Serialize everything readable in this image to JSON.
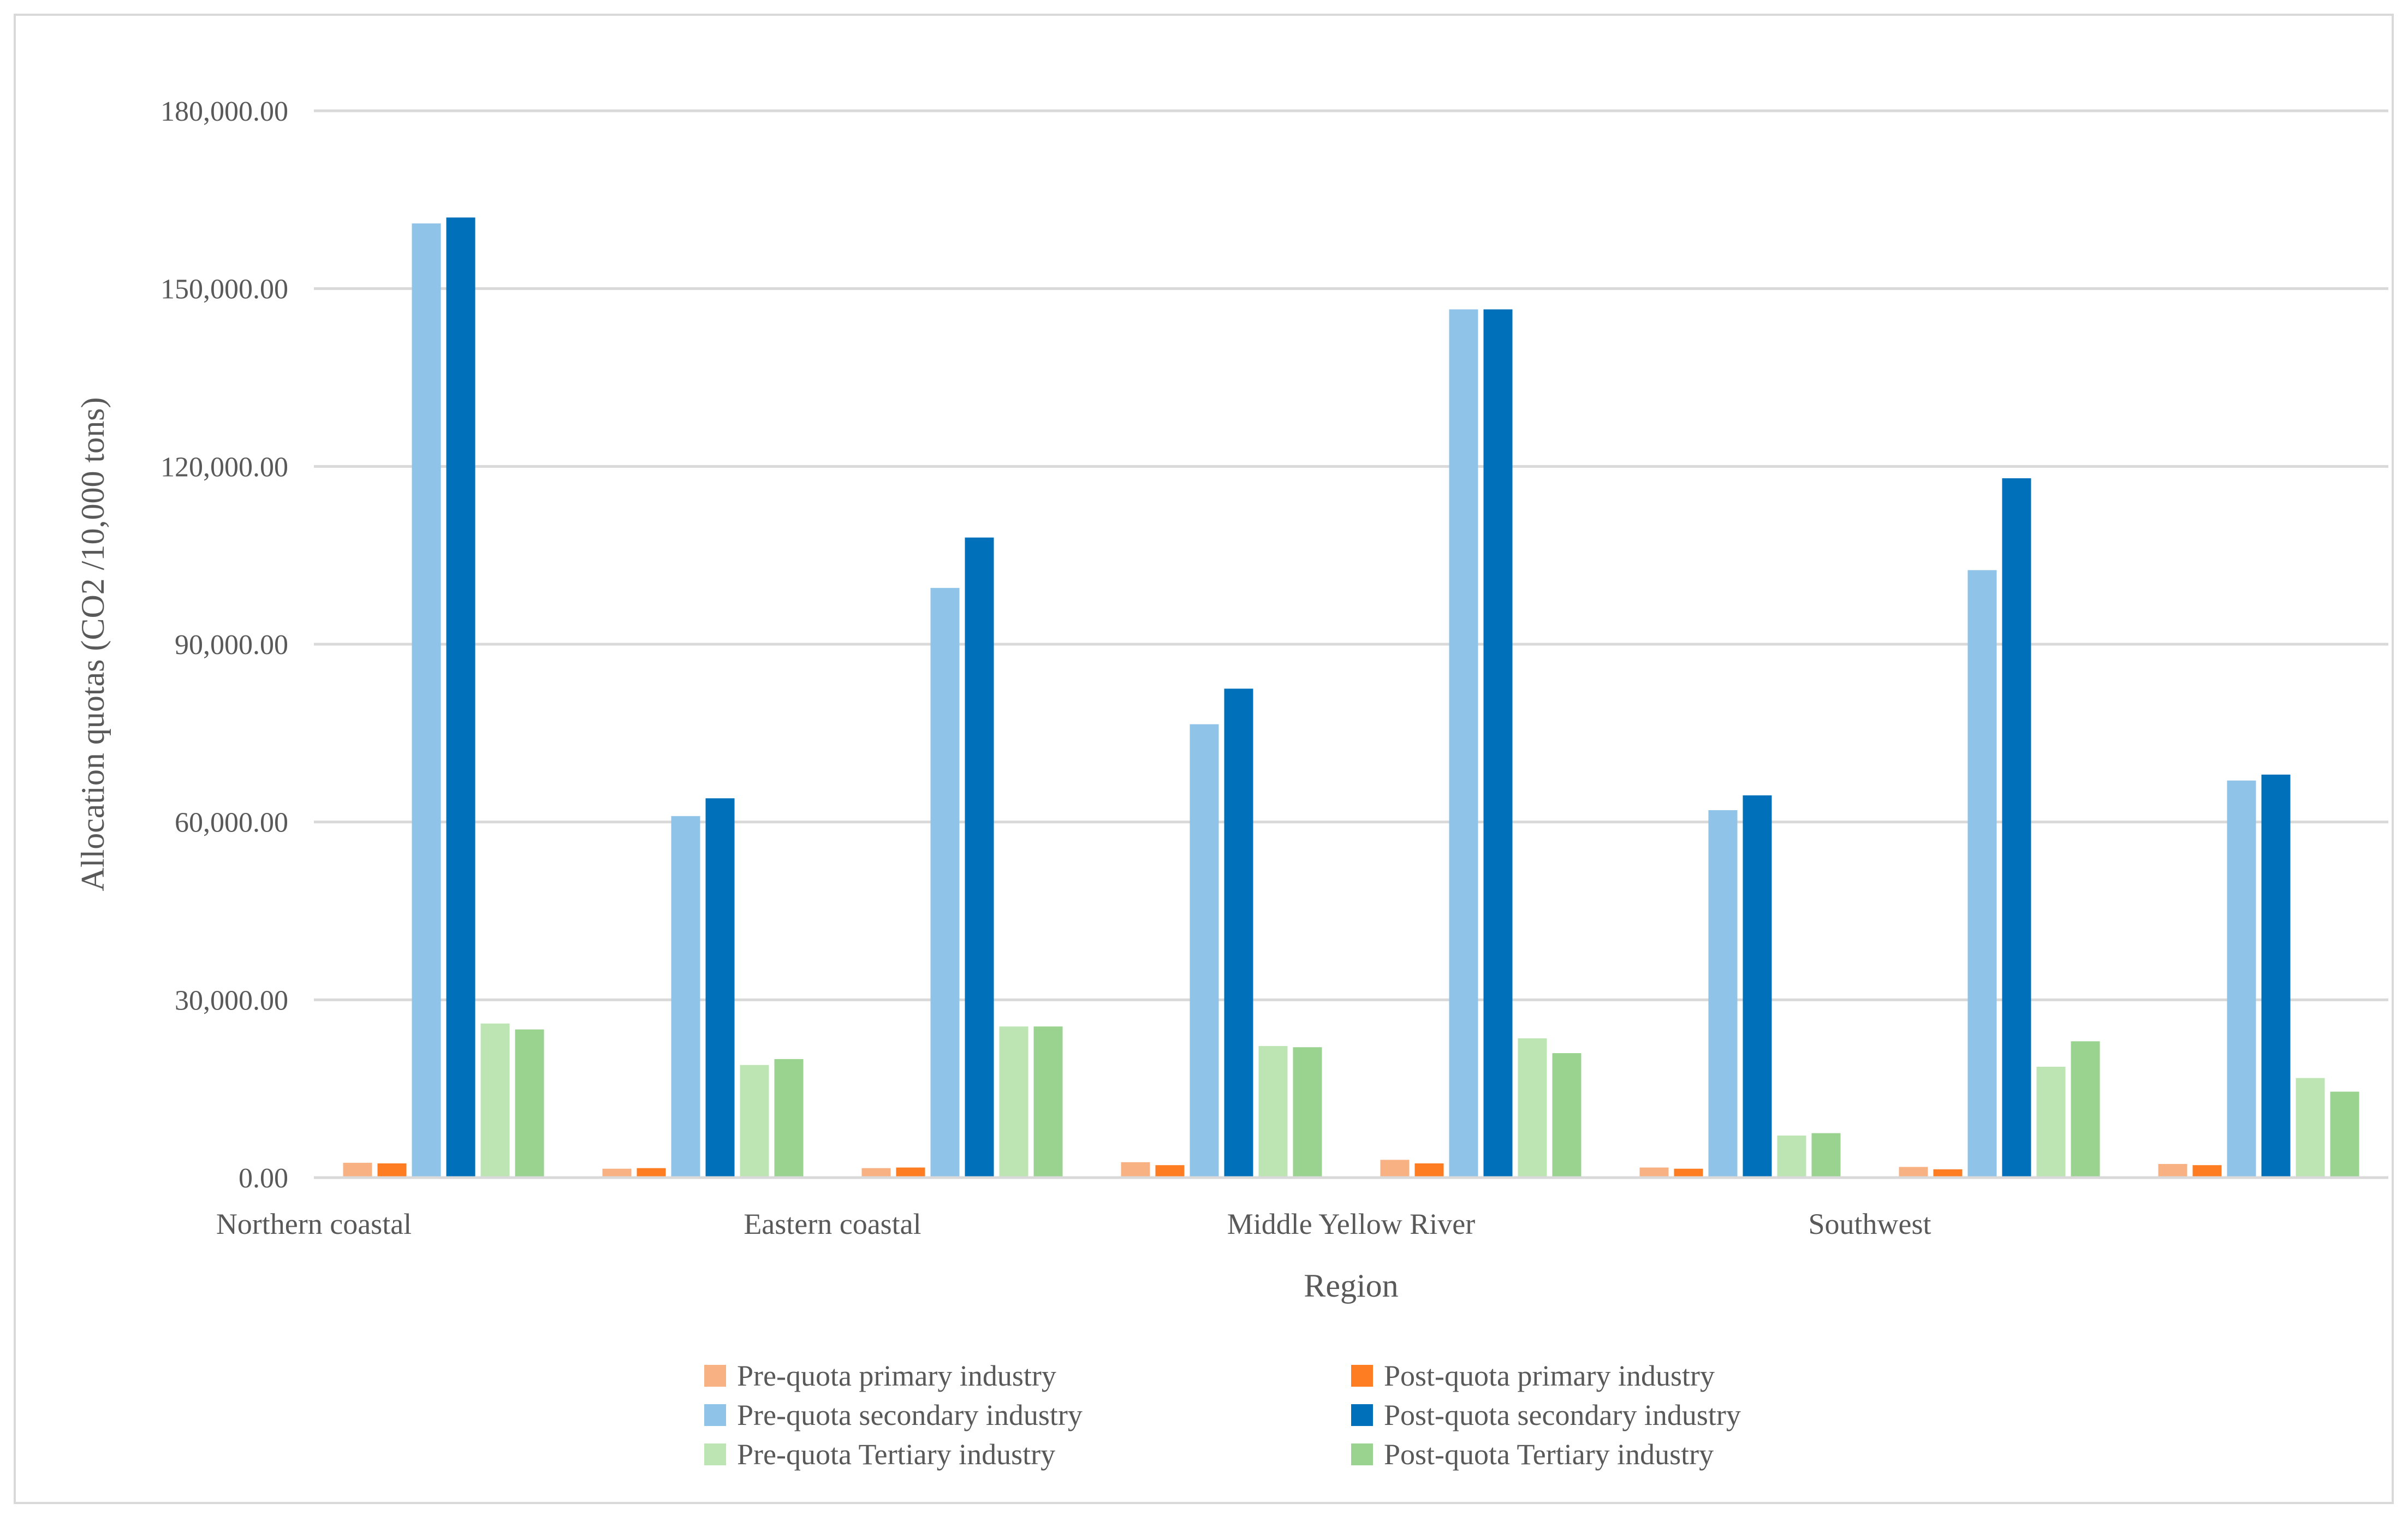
{
  "chart_data": {
    "type": "bar",
    "title": "",
    "xlabel": "Region",
    "ylabel": "Allocation quotas (CO2 /10,000 tons)",
    "ylim": [
      0,
      180000
    ],
    "yticks": [
      0,
      30000,
      60000,
      90000,
      120000,
      150000,
      180000
    ],
    "ytick_labels": [
      "0.00",
      "30,000.00",
      "60,000.00",
      "90,000.00",
      "120,000.00",
      "150,000.00",
      "180,000.00"
    ],
    "grid": true,
    "legend_position": "bottom",
    "categories": [
      "Northern coastal",
      "",
      "Eastern coastal",
      "",
      "Middle Yellow River",
      "",
      "Southwest",
      ""
    ],
    "series": [
      {
        "name": "Pre-quota primary industry",
        "color": "#f8b183",
        "values": [
          2500,
          1500,
          1600,
          2600,
          3000,
          1700,
          1800,
          2300
        ]
      },
      {
        "name": "Post-quota primary industry",
        "color": "#fe7d22",
        "values": [
          2400,
          1600,
          1700,
          2100,
          2400,
          1500,
          1400,
          2100
        ]
      },
      {
        "name": "Pre-quota secondary industry",
        "color": "#8fc3e8",
        "values": [
          161000,
          61000,
          99500,
          76500,
          146500,
          62000,
          102500,
          67000
        ]
      },
      {
        "name": "Post-quota secondary industry",
        "color": "#0070ba",
        "values": [
          162000,
          64000,
          108000,
          82500,
          146500,
          64500,
          118000,
          68000
        ]
      },
      {
        "name": "Pre-quota Tertiary industry",
        "color": "#bde4b3",
        "values": [
          26000,
          19000,
          25500,
          22200,
          23500,
          7100,
          18700,
          16800
        ]
      },
      {
        "name": "Post-quota Tertiary industry",
        "color": "#99d38f",
        "values": [
          25000,
          20000,
          25500,
          22000,
          21000,
          7500,
          23000,
          14500
        ]
      }
    ]
  }
}
